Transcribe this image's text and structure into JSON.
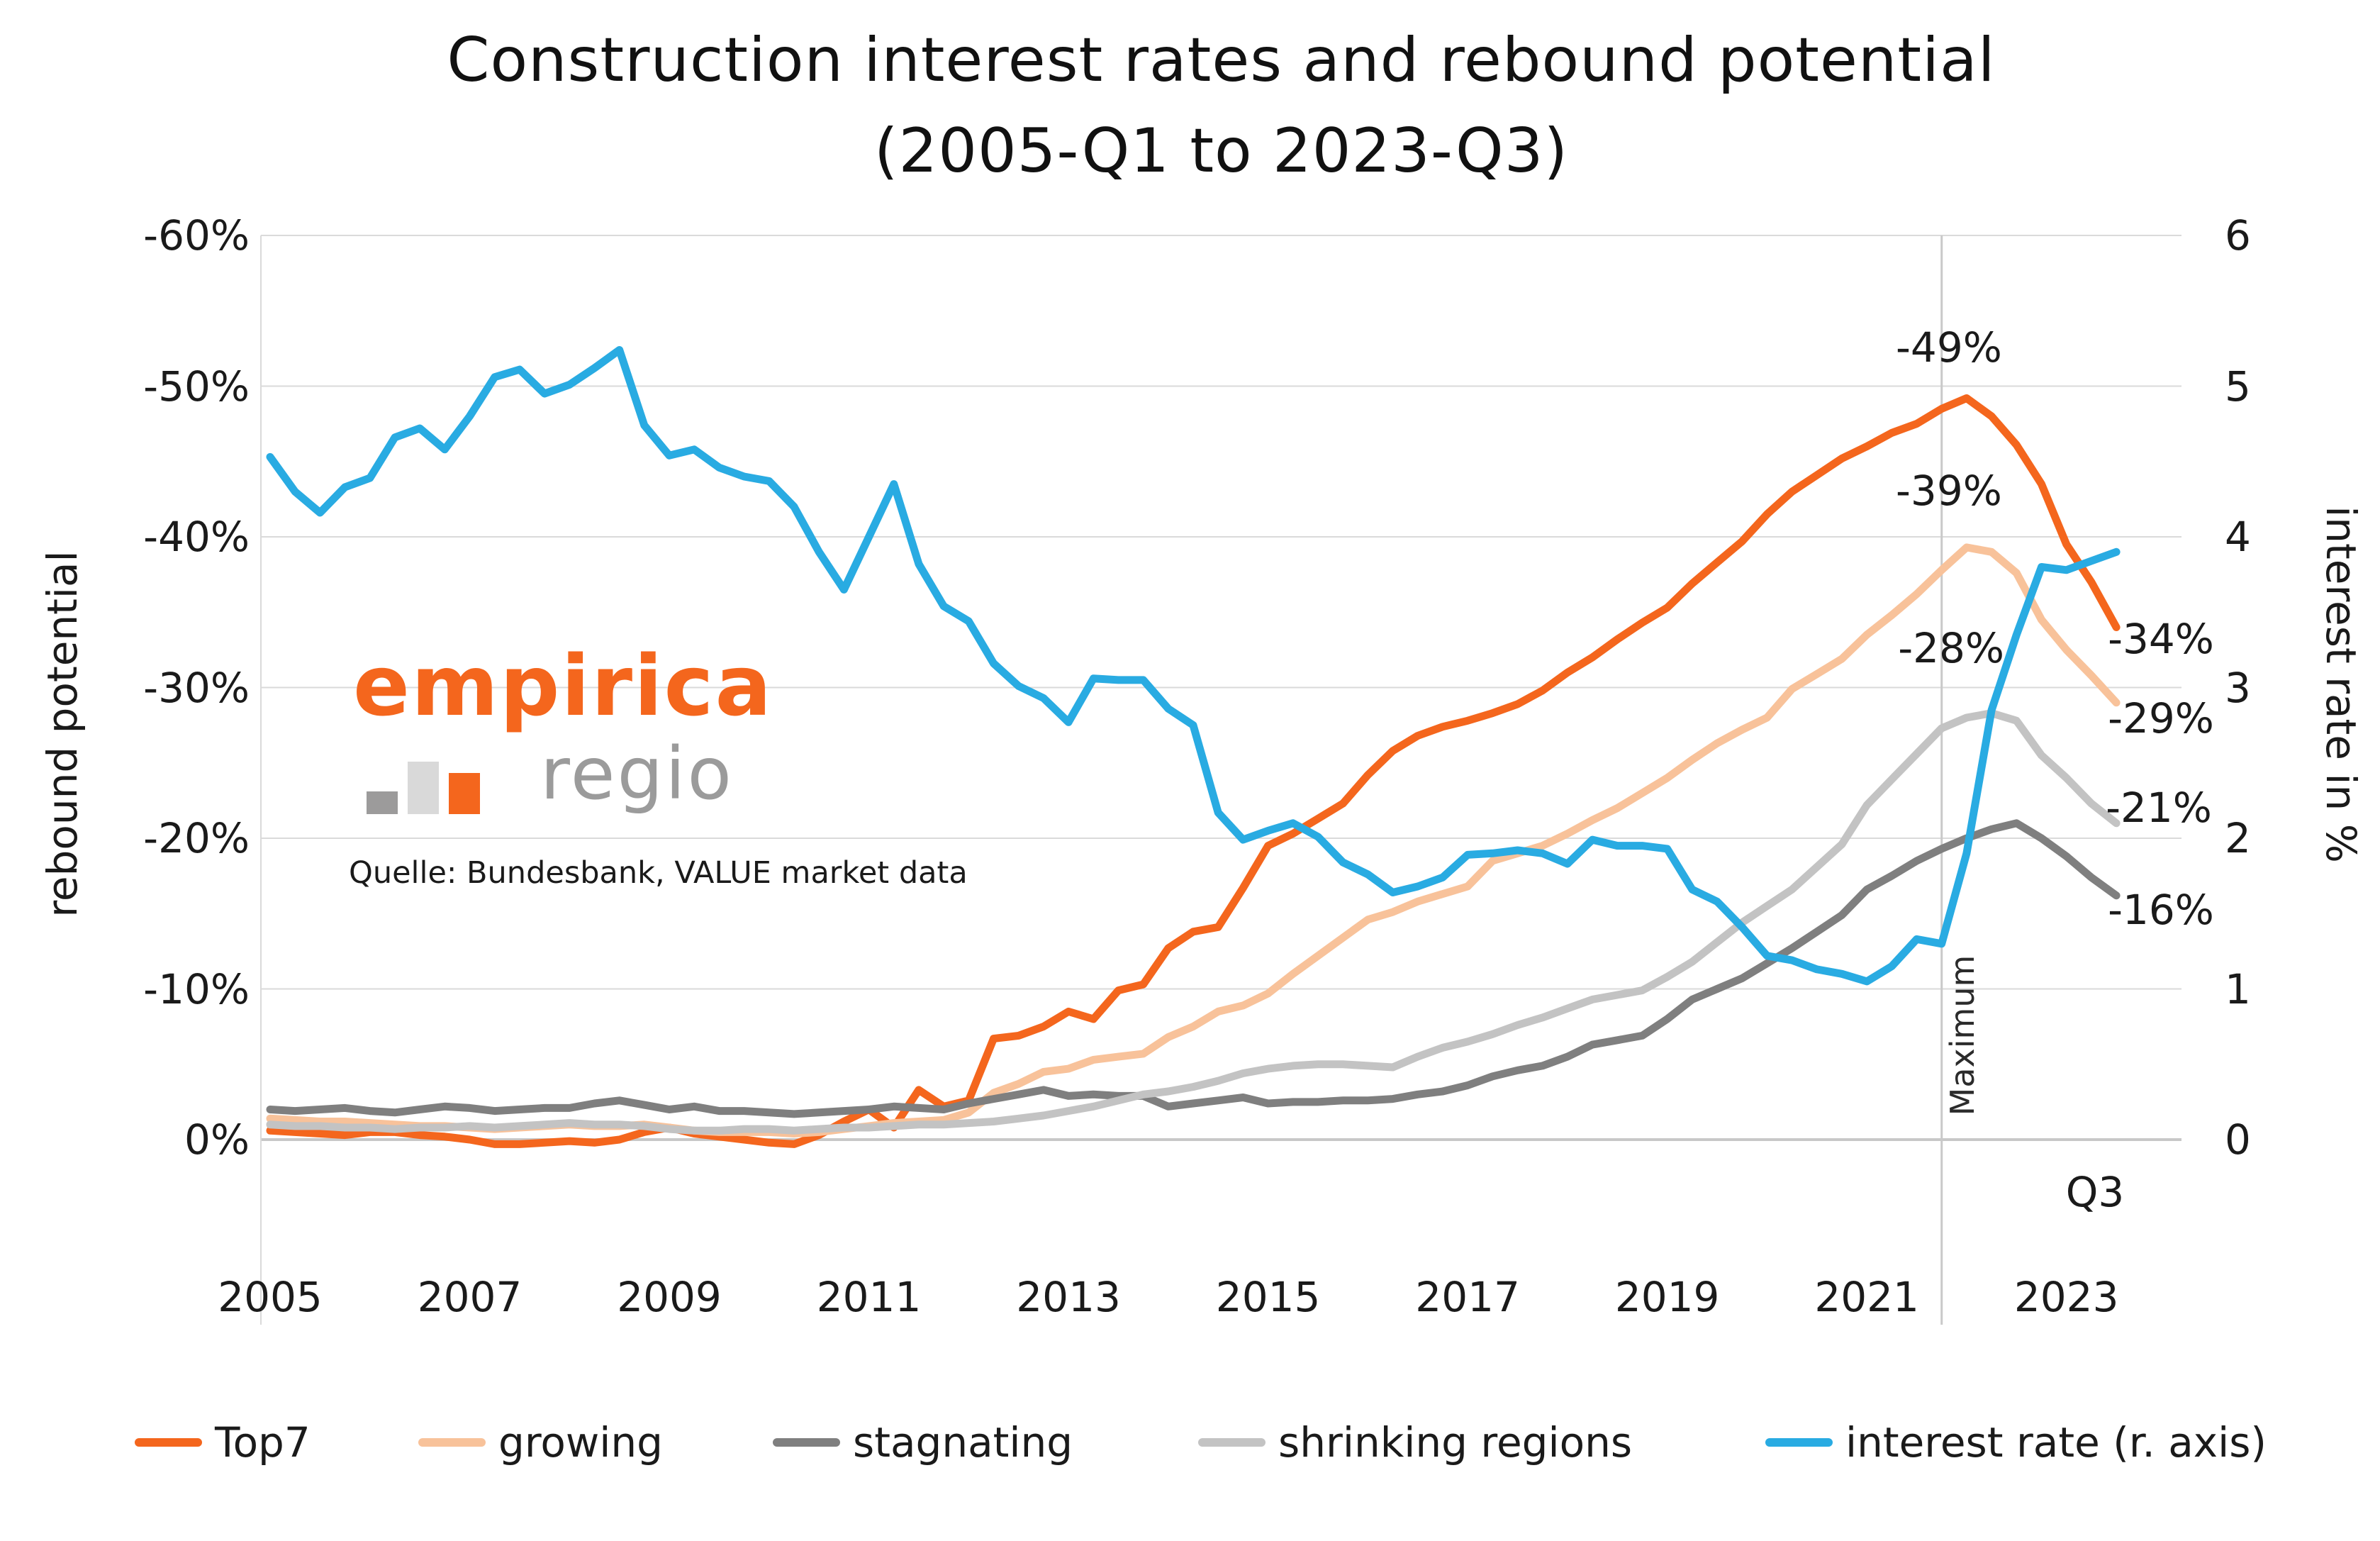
{
  "title": {
    "line1": "Construction interest rates and rebound potential",
    "line2": "(2005-Q1 to 2023-Q3)"
  },
  "watermark": {
    "brand_primary": "empirica",
    "brand_secondary": "regio",
    "brand_primary_color": "#F4661D",
    "brand_secondary_color": "#9B9B9B",
    "icon": "bar-chart-icon",
    "icon_colors": [
      "#9C9B9B",
      "#D9D9D9",
      "#F4661D"
    ],
    "source": "Quelle: Bundesbank, VALUE market data"
  },
  "axes": {
    "left": {
      "label": "rebound potential",
      "ticks": [
        {
          "label": "-60%",
          "value": -60
        },
        {
          "label": "-50%",
          "value": -50
        },
        {
          "label": "-40%",
          "value": -40
        },
        {
          "label": "-30%",
          "value": -30
        },
        {
          "label": "-20%",
          "value": -20
        },
        {
          "label": "-10%",
          "value": -10
        },
        {
          "label": "0%",
          "value": 0
        }
      ]
    },
    "right": {
      "label": "interest rate in %",
      "ticks": [
        {
          "label": "6",
          "value": 6
        },
        {
          "label": "5",
          "value": 5
        },
        {
          "label": "4",
          "value": 4
        },
        {
          "label": "3",
          "value": 3
        },
        {
          "label": "2",
          "value": 2
        },
        {
          "label": "1",
          "value": 1
        },
        {
          "label": "0",
          "value": 0
        }
      ]
    },
    "x": {
      "ticks": [
        {
          "label": "2005",
          "index": 0
        },
        {
          "label": "2007",
          "index": 8
        },
        {
          "label": "2009",
          "index": 16
        },
        {
          "label": "2011",
          "index": 24
        },
        {
          "label": "2013",
          "index": 32
        },
        {
          "label": "2015",
          "index": 40
        },
        {
          "label": "2017",
          "index": 48
        },
        {
          "label": "2019",
          "index": 56
        },
        {
          "label": "2021",
          "index": 64
        },
        {
          "label": "2023",
          "index": 72
        }
      ],
      "end_label": "Q3"
    }
  },
  "annotations": {
    "top7_peak": "-49%",
    "growing_peak": "-39%",
    "shrinking_peak": "-28%",
    "top7_end": "-34%",
    "growing_end": "-29%",
    "shrinking_end": "-21%",
    "stagnating_end": "-16%",
    "maximum": "Maximum"
  },
  "legend": [
    {
      "label": "Top7",
      "color": "#F4661D"
    },
    {
      "label": "growing",
      "color": "#F8C29A"
    },
    {
      "label": "stagnating",
      "color": "#7F7F7F"
    },
    {
      "label": "shrinking regions",
      "color": "#C3C3C3"
    },
    {
      "label": "interest rate (r. axis)",
      "color": "#29ABE2"
    }
  ],
  "chart_data": {
    "type": "line",
    "x_start": "2005-Q1",
    "x_end": "2023-Q3",
    "frequency": "quarterly",
    "n_points": 75,
    "left_axis": {
      "label": "rebound potential",
      "range_top_to_bottom": [
        -60,
        0
      ],
      "unit": "%",
      "inverted": true
    },
    "right_axis": {
      "label": "interest rate in %",
      "range": [
        0,
        6
      ]
    },
    "grid": "horizontal",
    "legend_position": "bottom",
    "maximum_marker": {
      "label": "Maximum",
      "quarter": "2021-Q4",
      "index": 67
    },
    "series": [
      {
        "name": "Top7",
        "axis": "left",
        "color": "#F4661D",
        "values": [
          -0.6,
          -0.5,
          -0.4,
          -0.3,
          -0.5,
          -0.5,
          -0.3,
          -0.2,
          0.0,
          0.3,
          0.3,
          0.2,
          0.1,
          0.2,
          0.0,
          -0.5,
          -0.8,
          -0.4,
          -0.2,
          0.0,
          0.2,
          0.3,
          -0.3,
          -1.2,
          -2.0,
          -0.8,
          -3.3,
          -2.2,
          -2.6,
          -6.7,
          -6.9,
          -7.5,
          -8.5,
          -8.0,
          -9.9,
          -10.3,
          -12.7,
          -13.8,
          -14.1,
          -16.7,
          -19.5,
          -20.3,
          -21.3,
          -22.3,
          -24.2,
          -25.8,
          -26.8,
          -27.4,
          -27.8,
          -28.3,
          -28.9,
          -29.8,
          -31.0,
          -32.0,
          -33.2,
          -34.3,
          -35.3,
          -36.9,
          -38.3,
          -39.7,
          -41.5,
          -43.0,
          -44.1,
          -45.2,
          -46.0,
          -46.9,
          -47.5,
          -48.5,
          -49.2,
          -48.0,
          -46.1,
          -43.5,
          -39.5,
          -37.0,
          -34.0
        ]
      },
      {
        "name": "growing",
        "axis": "left",
        "color": "#F8C29A",
        "values": [
          -1.4,
          -1.3,
          -1.2,
          -1.2,
          -1.1,
          -1.0,
          -0.9,
          -0.9,
          -0.8,
          -0.7,
          -0.8,
          -0.9,
          -1.0,
          -0.9,
          -0.9,
          -1.0,
          -0.8,
          -0.6,
          -0.5,
          -0.5,
          -0.5,
          -0.4,
          -0.5,
          -0.7,
          -0.9,
          -1.1,
          -1.2,
          -1.3,
          -1.8,
          -3.1,
          -3.7,
          -4.5,
          -4.7,
          -5.3,
          -5.5,
          -5.7,
          -6.8,
          -7.5,
          -8.5,
          -8.9,
          -9.7,
          -11.0,
          -12.2,
          -13.4,
          -14.6,
          -15.1,
          -15.8,
          -16.3,
          -16.8,
          -18.5,
          -19.0,
          -19.5,
          -20.3,
          -21.2,
          -22.0,
          -23.0,
          -24.0,
          -25.2,
          -26.3,
          -27.2,
          -28.0,
          -29.9,
          -30.9,
          -31.9,
          -33.5,
          -34.8,
          -36.2,
          -37.8,
          -39.3,
          -39.0,
          -37.6,
          -34.5,
          -32.5,
          -30.8,
          -29.0
        ]
      },
      {
        "name": "stagnating",
        "axis": "left",
        "color": "#7F7F7F",
        "values": [
          -2.0,
          -1.9,
          -2.0,
          -2.1,
          -1.9,
          -1.8,
          -2.0,
          -2.2,
          -2.1,
          -1.9,
          -2.0,
          -2.1,
          -2.1,
          -2.4,
          -2.6,
          -2.3,
          -2.0,
          -2.2,
          -1.9,
          -1.9,
          -1.8,
          -1.7,
          -1.8,
          -1.9,
          -2.0,
          -2.2,
          -2.1,
          -2.0,
          -2.4,
          -2.7,
          -3.0,
          -3.3,
          -2.9,
          -3.0,
          -2.9,
          -2.9,
          -2.2,
          -2.4,
          -2.6,
          -2.8,
          -2.4,
          -2.5,
          -2.5,
          -2.6,
          -2.6,
          -2.7,
          -3.0,
          -3.2,
          -3.6,
          -4.2,
          -4.6,
          -4.9,
          -5.5,
          -6.3,
          -6.6,
          -6.9,
          -8.0,
          -9.3,
          -10.0,
          -10.7,
          -11.7,
          -12.7,
          -13.8,
          -14.9,
          -16.6,
          -17.5,
          -18.5,
          -19.3,
          -20.0,
          -20.6,
          -21.0,
          -20.0,
          -18.8,
          -17.4,
          -16.2
        ]
      },
      {
        "name": "shrinking regions",
        "axis": "left",
        "color": "#C3C3C3",
        "values": [
          -1.0,
          -0.9,
          -0.9,
          -0.8,
          -0.8,
          -0.7,
          -0.8,
          -0.8,
          -0.9,
          -0.8,
          -0.9,
          -1.0,
          -1.1,
          -1.0,
          -1.0,
          -0.9,
          -0.7,
          -0.6,
          -0.6,
          -0.7,
          -0.7,
          -0.6,
          -0.7,
          -0.8,
          -0.8,
          -0.9,
          -1.0,
          -1.0,
          -1.1,
          -1.2,
          -1.4,
          -1.6,
          -1.9,
          -2.2,
          -2.6,
          -3.0,
          -3.2,
          -3.5,
          -3.9,
          -4.4,
          -4.7,
          -4.9,
          -5.0,
          -5.0,
          -4.9,
          -4.8,
          -5.5,
          -6.1,
          -6.5,
          -7.0,
          -7.6,
          -8.1,
          -8.7,
          -9.3,
          -9.6,
          -9.9,
          -10.8,
          -11.8,
          -13.1,
          -14.4,
          -15.5,
          -16.6,
          -18.1,
          -19.6,
          -22.2,
          -23.9,
          -25.6,
          -27.3,
          -28.0,
          -28.3,
          -27.8,
          -25.5,
          -24.0,
          -22.3,
          -21.0
        ]
      },
      {
        "name": "interest rate (r. axis)",
        "axis": "right",
        "color": "#29ABE2",
        "values": [
          4.53,
          4.3,
          4.16,
          4.33,
          4.39,
          4.66,
          4.72,
          4.58,
          4.8,
          5.06,
          5.11,
          4.95,
          5.01,
          5.12,
          5.24,
          4.74,
          4.54,
          4.58,
          4.46,
          4.4,
          4.37,
          4.2,
          3.9,
          3.65,
          4.0,
          4.35,
          3.82,
          3.54,
          3.44,
          3.16,
          3.01,
          2.93,
          2.77,
          3.06,
          3.05,
          3.05,
          2.86,
          2.75,
          2.17,
          1.99,
          2.05,
          2.1,
          2.01,
          1.84,
          1.76,
          1.64,
          1.68,
          1.74,
          1.89,
          1.9,
          1.92,
          1.9,
          1.83,
          1.99,
          1.95,
          1.95,
          1.93,
          1.66,
          1.58,
          1.41,
          1.22,
          1.19,
          1.13,
          1.1,
          1.05,
          1.15,
          1.33,
          1.3,
          1.9,
          2.85,
          3.35,
          3.8,
          3.78,
          3.84,
          3.9
        ]
      }
    ]
  }
}
